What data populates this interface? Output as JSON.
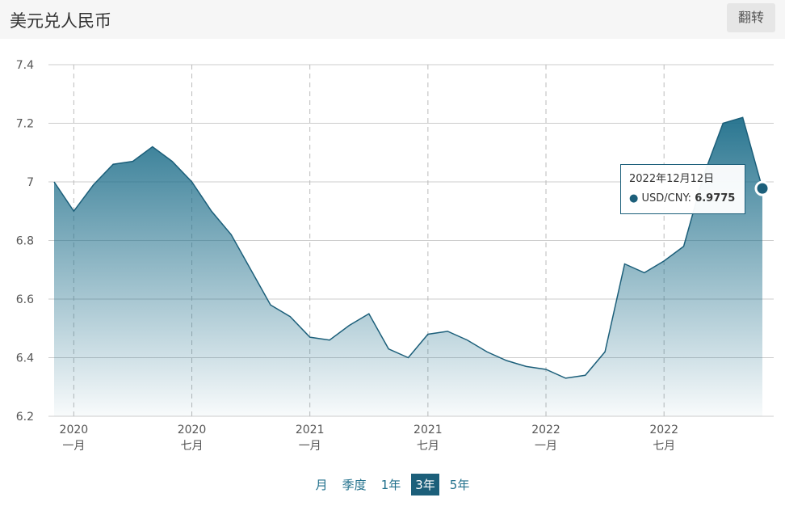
{
  "header": {
    "title": "美元兑人民币",
    "button": "翻转"
  },
  "chart_data": {
    "type": "area",
    "x": [
      "2019-12",
      "2020-01",
      "2020-02",
      "2020-03",
      "2020-04",
      "2020-05",
      "2020-06",
      "2020-07",
      "2020-08",
      "2020-09",
      "2020-10",
      "2020-11",
      "2020-12",
      "2021-01",
      "2021-02",
      "2021-03",
      "2021-04",
      "2021-05",
      "2021-06",
      "2021-07",
      "2021-08",
      "2021-09",
      "2021-10",
      "2021-11",
      "2021-12",
      "2022-01",
      "2022-02",
      "2022-03",
      "2022-04",
      "2022-05",
      "2022-06",
      "2022-07",
      "2022-08",
      "2022-09",
      "2022-10",
      "2022-11",
      "2022-12"
    ],
    "series": [
      {
        "name": "USD/CNY:",
        "color": "#1c5f7a",
        "values": [
          7.0,
          6.9,
          6.99,
          7.06,
          7.07,
          7.12,
          7.07,
          7.0,
          6.9,
          6.82,
          6.7,
          6.58,
          6.54,
          6.47,
          6.46,
          6.51,
          6.55,
          6.43,
          6.4,
          6.48,
          6.49,
          6.46,
          6.42,
          6.39,
          6.37,
          6.36,
          6.33,
          6.34,
          6.42,
          6.72,
          6.69,
          6.73,
          6.78,
          7.02,
          7.2,
          7.22,
          6.9775
        ]
      }
    ],
    "xlim": [
      "2019-12",
      "2022-12"
    ],
    "xticks": [
      {
        "value": "2020-01",
        "label": [
          "2020",
          "一月"
        ]
      },
      {
        "value": "2020-07",
        "label": [
          "2020",
          "七月"
        ]
      },
      {
        "value": "2021-01",
        "label": [
          "2021",
          "一月"
        ]
      },
      {
        "value": "2021-07",
        "label": [
          "2021",
          "七月"
        ]
      },
      {
        "value": "2022-01",
        "label": [
          "2022",
          "一月"
        ]
      },
      {
        "value": "2022-07",
        "label": [
          "2022",
          "七月"
        ]
      }
    ],
    "ylim": [
      6.2,
      7.4
    ],
    "yticks": [
      6.2,
      6.4,
      6.6,
      6.8,
      7,
      7.2,
      7.4
    ],
    "grid": true,
    "tooltip": {
      "date": "2022年12月12日",
      "point": 36
    }
  },
  "ranges": {
    "items": [
      "月",
      "季度",
      "1年",
      "3年",
      "5年"
    ],
    "active": 3
  }
}
